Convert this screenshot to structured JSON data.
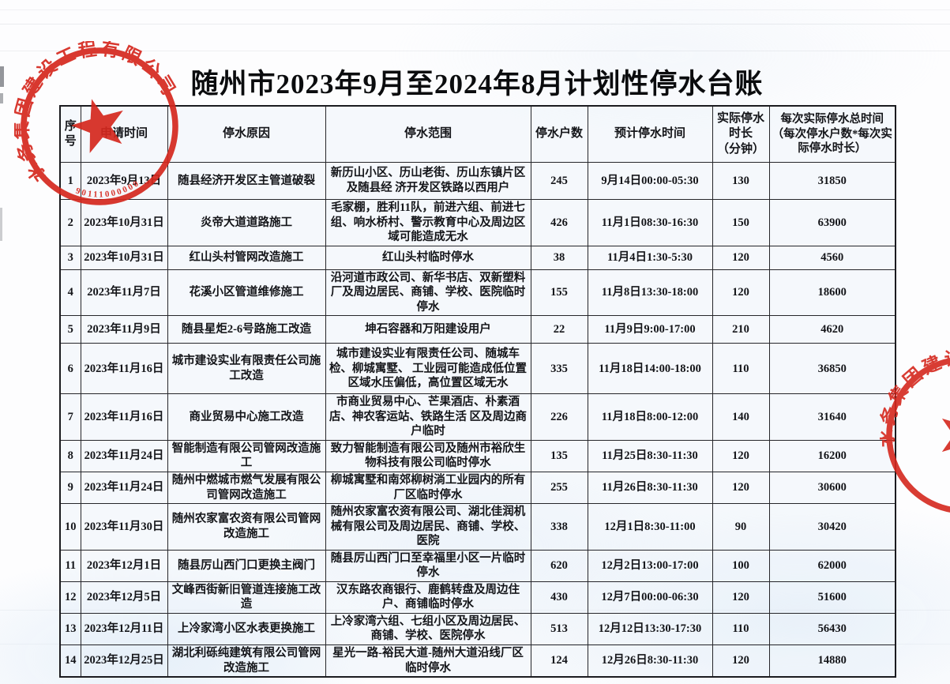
{
  "page": {
    "title": "随州市2023年9月至2024年8月计划性停水台账"
  },
  "table": {
    "columns": [
      "序\n号",
      "申请时间",
      "停水原因",
      "停水范围",
      "停水户数",
      "预计停水时间",
      "实际停水\n时长\n（分钟）",
      "每次实际停水总时间\n（每次停水户数*每次实\n际停水时长）"
    ],
    "rows": [
      [
        "1",
        "2023年9月13日",
        "随县经济开发区主管道破裂",
        "新历山小区、历山老街、历山东镇片区及随县经 济开发区铁路以西用户",
        "245",
        "9月14日00:00-05:30",
        "130",
        "31850"
      ],
      [
        "2",
        "2023年10月31日",
        "炎帝大道道路施工",
        "毛家棚，胜利11队，前进六组、前进七组、响水桥村、警示教育中心及周边区域可能造成无水",
        "426",
        "11月1日08:30-16:30",
        "150",
        "63900"
      ],
      [
        "3",
        "2023年10月31日",
        "红山头村管网改造施工",
        "红山头村临时停水",
        "38",
        "11月4日1:30-5:30",
        "120",
        "4560"
      ],
      [
        "4",
        "2023年11月7日",
        "花溪小区管道维修施工",
        "沿河道市政公司、新华书店、双新塑料厂及周边居民、商铺、学校、医院临时停水",
        "155",
        "11月8日13:30-18:00",
        "120",
        "18600"
      ],
      [
        "5",
        "2023年11月9日",
        "随县星炬2-6号路施工改造",
        "坤石容器和万阳建设用户",
        "22",
        "11月9日9:00-17:00",
        "210",
        "4620"
      ],
      [
        "6",
        "2023年11月16日",
        "城市建设实业有限责任公司施工改造",
        "城市建设实业有限责任公司、随城车检、柳城寓墅、 工业园可能造成低位置区域水压偏低，高位置区域无水",
        "335",
        "11月18日14:00-18:00",
        "110",
        "36850"
      ],
      [
        "7",
        "2023年11月16日",
        "商业贸易中心施工改造",
        "市商业贸易中心、芒果酒店、朴素酒店、神农客运站、铁路生活 区及周边商户临时",
        "226",
        "11月18日8:00-12:00",
        "140",
        "31640"
      ],
      [
        "8",
        "2023年11月24日",
        "智能制造有限公司管网改造施工",
        "致力智能制造有限公司及随州市裕欣生物科技有限公司临时停水",
        "135",
        "11月25日8:30-11:30",
        "120",
        "16200"
      ],
      [
        "9",
        "2023年11月24日",
        "随州中燃城市燃气发展有限公司管网改造施工",
        "柳城寓墅和南郊柳树淌工业园内的所有厂区临时停水",
        "255",
        "11月26日8:30-11:30",
        "120",
        "30600"
      ],
      [
        "10",
        "2023年11月30日",
        "随州农家富农资有限公司管网改造施工",
        "随州农家富农资有限公司、湖北佳润机械有限公司及周边居民、商铺、学校、医院",
        "338",
        "12月1日8:30-11:00",
        "90",
        "30420"
      ],
      [
        "11",
        "2023年12月1日",
        "随县厉山西门口更换主阀门",
        "随县厉山西门口至幸福里小区一片临时停水",
        "620",
        "12月2日13:00-17:00",
        "100",
        "62000"
      ],
      [
        "12",
        "2023年12月5日",
        "文峰西街新旧管道连接施工改造",
        "汉东路农商银行、鹿鹤转盘及周边住户、商铺临时停水",
        "430",
        "12月7日00:00-06:30",
        "120",
        "51600"
      ],
      [
        "13",
        "2023年12月11日",
        "上冷家湾小区水表更换施工",
        "上冷家湾六组、七组小区及周边居民、商铺、学校、医院停水",
        "513",
        "12月12日13:30-17:30",
        "110",
        "56430"
      ],
      [
        "14",
        "2023年12月25日",
        "湖北利砾纯建筑有限公司管网改造施工",
        "星光一路-裕民大道-随州大道沿线厂区临时停水",
        "124",
        "12月26日8:30-11:30",
        "120",
        "14880"
      ]
    ]
  },
  "stamps": {
    "company_text": "水务集团建设工程有限公司",
    "serial_text": "90111000000",
    "color": "#d5281e"
  }
}
